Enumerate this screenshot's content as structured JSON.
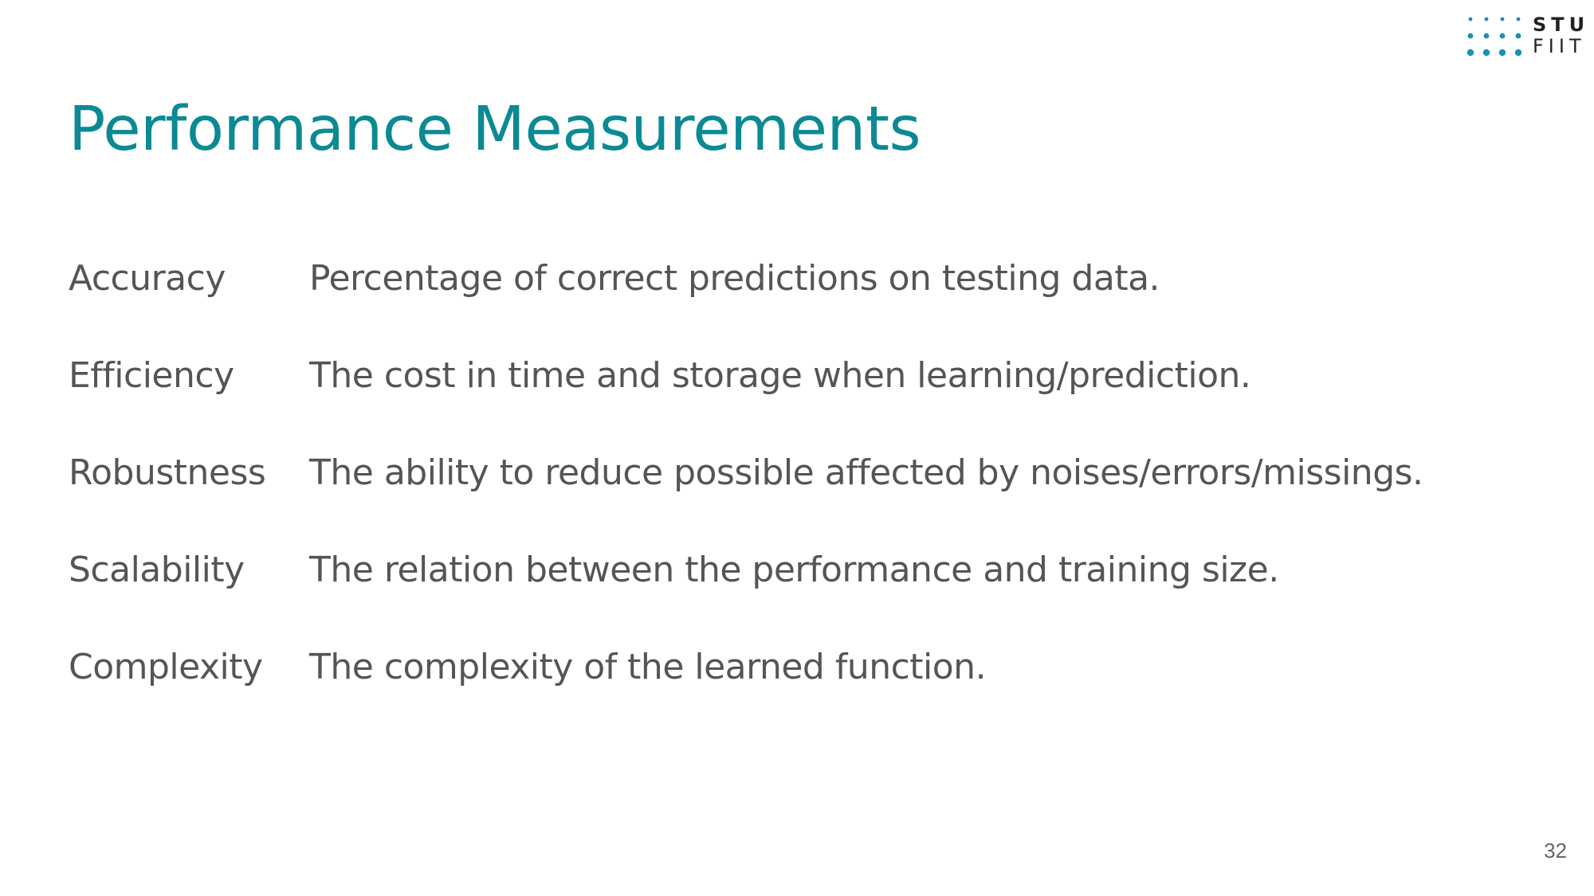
{
  "slide": {
    "title": "Performance Measurements",
    "page_number": "32"
  },
  "logo": {
    "line1": "STU",
    "line2": "FIIT",
    "dot_color": "#1b8fb0"
  },
  "definitions": [
    {
      "term": "Accuracy",
      "description": "Percentage of correct predictions on testing data."
    },
    {
      "term": "Efficiency",
      "description": "The cost in time and storage when learning/prediction."
    },
    {
      "term": "Robustness",
      "description": "The ability to reduce possible affected by noises/errors/missings."
    },
    {
      "term": "Scalability",
      "description": "The relation between the performance and training size."
    },
    {
      "term": "Complexity",
      "description": "The complexity of the learned function."
    }
  ],
  "colors": {
    "title": "#0b8a94",
    "body_text": "#555555"
  }
}
